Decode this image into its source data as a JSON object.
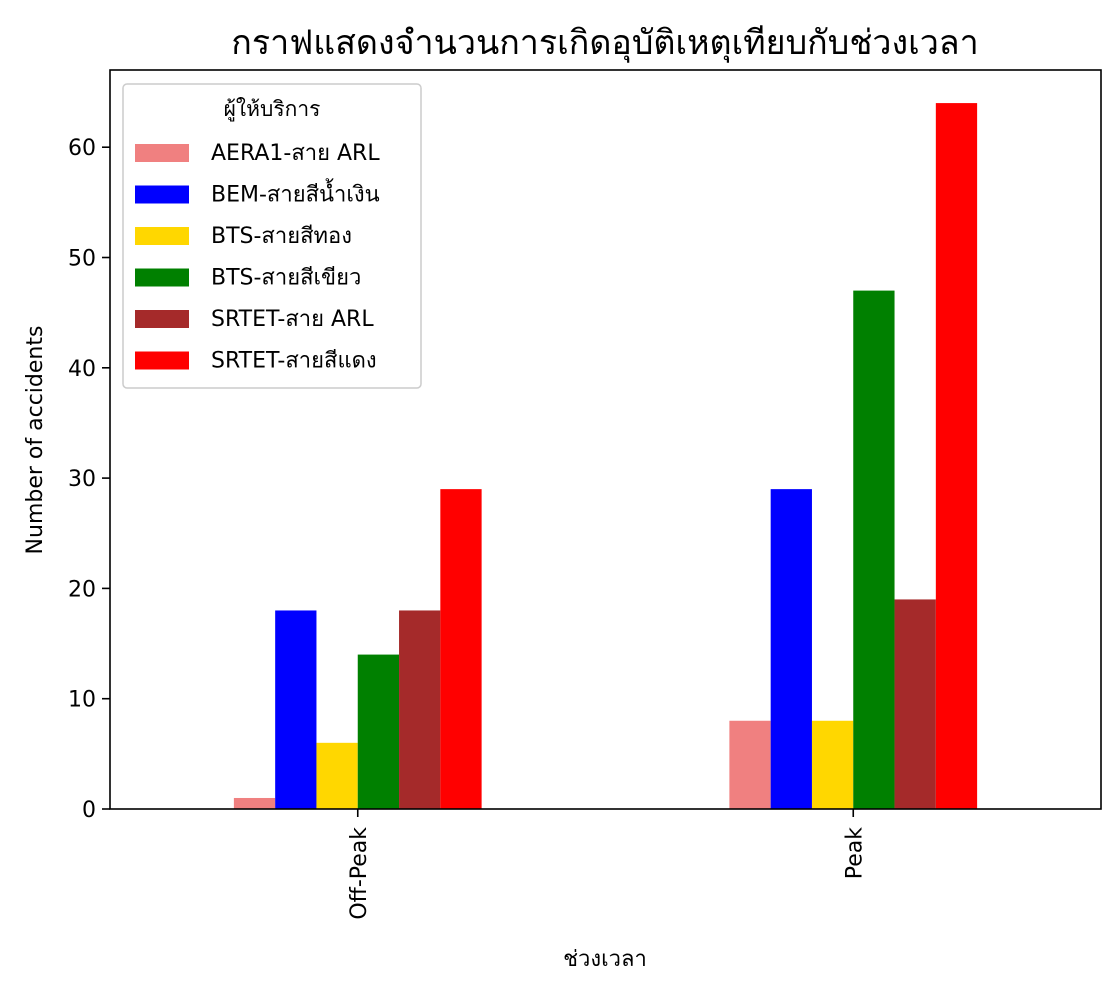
{
  "chart_data": {
    "type": "bar",
    "title": "กราฟแสดงจำนวนการเกิดอุบัติเหตุเทียบกับช่วงเวลา",
    "xlabel": "ช่วงเวลา",
    "ylabel": "Number of accidents",
    "categories": [
      "Off-Peak",
      "Peak"
    ],
    "ylim": [
      0,
      67
    ],
    "yticks": [
      0,
      10,
      20,
      30,
      40,
      50,
      60
    ],
    "grid": false,
    "legend": {
      "title": "ผู้ให้บริการ",
      "placement": "top-left"
    },
    "series": [
      {
        "name": "AERA1-สาย ARL",
        "color": "#F08080",
        "values": [
          1,
          8
        ]
      },
      {
        "name": "BEM-สายสีน้ำเงิน",
        "color": "#0000FF",
        "values": [
          18,
          29
        ]
      },
      {
        "name": "BTS-สายสีทอง",
        "color": "#FFD700",
        "values": [
          6,
          8
        ]
      },
      {
        "name": "BTS-สายสีเขียว",
        "color": "#008000",
        "values": [
          14,
          47
        ]
      },
      {
        "name": "SRTET-สาย ARL",
        "color": "#A52A2A",
        "values": [
          18,
          19
        ]
      },
      {
        "name": "SRTET-สายสีแดง",
        "color": "#FF0000",
        "values": [
          29,
          64
        ]
      }
    ]
  }
}
